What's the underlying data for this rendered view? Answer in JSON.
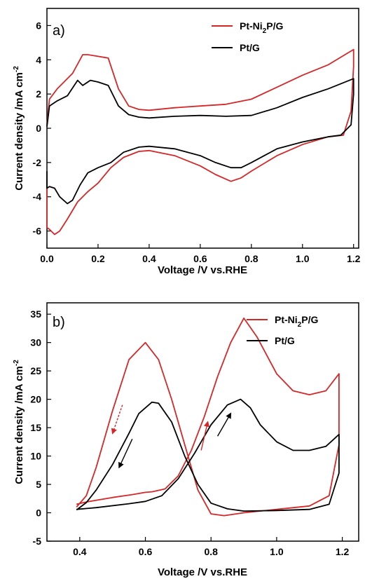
{
  "chart_data": [
    {
      "type": "line",
      "panel_label": "a)",
      "xlabel": "Voltage /V vs.RHE",
      "ylabel_main": "Current density /mA cm",
      "ylabel_sup": "-2",
      "xlim": [
        0.0,
        1.22
      ],
      "ylim": [
        -7,
        7
      ],
      "xticks": [
        0.0,
        0.2,
        0.4,
        0.6,
        0.8,
        1.0,
        1.2
      ],
      "xtick_labels": [
        "0.0",
        "0.2",
        "0.4",
        "0.6",
        "0.8",
        "1.0",
        "1.2"
      ],
      "yticks": [
        -6,
        -4,
        -2,
        0,
        2,
        4,
        6
      ],
      "ytick_labels": [
        "-6",
        "-4",
        "-2",
        "0",
        "2",
        "4",
        "6"
      ],
      "legend_position": "top-right",
      "series": [
        {
          "name": "Pt-Ni₂P/G",
          "name_base": "Pt-Ni",
          "name_sub": "2",
          "name_rest": "P/G",
          "color": "#d62728",
          "x": [
            0.0,
            0.01,
            0.04,
            0.1,
            0.14,
            0.16,
            0.2,
            0.24,
            0.28,
            0.32,
            0.36,
            0.4,
            0.5,
            0.6,
            0.7,
            0.8,
            0.9,
            1.0,
            1.1,
            1.2,
            1.2,
            1.19,
            1.16,
            1.1,
            1.0,
            0.9,
            0.8,
            0.76,
            0.72,
            0.66,
            0.6,
            0.5,
            0.4,
            0.36,
            0.3,
            0.25,
            0.2,
            0.16,
            0.12,
            0.08,
            0.05,
            0.03,
            0.01,
            0.0,
            0.0
          ],
          "y": [
            0.2,
            1.7,
            2.3,
            3.2,
            4.3,
            4.3,
            4.2,
            4.1,
            2.3,
            1.3,
            1.1,
            1.05,
            1.2,
            1.3,
            1.4,
            1.7,
            2.4,
            3.1,
            3.7,
            4.6,
            3.6,
            1.0,
            -0.4,
            -0.5,
            -0.95,
            -1.6,
            -2.5,
            -2.9,
            -3.1,
            -2.7,
            -2.2,
            -1.6,
            -1.3,
            -1.35,
            -1.7,
            -2.3,
            -3.2,
            -3.7,
            -4.3,
            -5.3,
            -6.0,
            -6.2,
            -5.9,
            -5.8,
            -3.0
          ]
        },
        {
          "name": "Pt/G",
          "color": "#000000",
          "x": [
            0.0,
            0.01,
            0.04,
            0.08,
            0.12,
            0.14,
            0.17,
            0.2,
            0.24,
            0.28,
            0.32,
            0.36,
            0.4,
            0.5,
            0.6,
            0.7,
            0.8,
            0.9,
            1.0,
            1.1,
            1.2,
            1.2,
            1.19,
            1.15,
            1.1,
            1.0,
            0.9,
            0.8,
            0.76,
            0.72,
            0.66,
            0.6,
            0.5,
            0.4,
            0.36,
            0.3,
            0.25,
            0.2,
            0.16,
            0.13,
            0.1,
            0.08,
            0.05,
            0.03,
            0.01,
            0.0,
            0.0
          ],
          "y": [
            0.1,
            1.3,
            1.6,
            1.9,
            2.8,
            2.5,
            2.8,
            2.7,
            2.5,
            1.3,
            0.8,
            0.65,
            0.6,
            0.7,
            0.75,
            0.7,
            0.75,
            1.2,
            1.8,
            2.3,
            2.9,
            2.0,
            0.2,
            -0.4,
            -0.5,
            -0.8,
            -1.2,
            -2.0,
            -2.3,
            -2.3,
            -2.0,
            -1.6,
            -1.2,
            -1.05,
            -1.1,
            -1.4,
            -2.0,
            -2.3,
            -2.6,
            -3.3,
            -4.2,
            -4.4,
            -4.0,
            -3.5,
            -3.4,
            -3.5,
            -2.5
          ]
        }
      ]
    },
    {
      "type": "line",
      "panel_label": "b)",
      "xlabel": "Voltage /V vs.RHE",
      "ylabel_main": "Current density /mA cm",
      "ylabel_sup": "-2",
      "xlim": [
        0.3,
        1.25
      ],
      "ylim": [
        -5,
        37
      ],
      "xticks": [
        0.4,
        0.6,
        0.8,
        1.0,
        1.2
      ],
      "xtick_labels": [
        "0.4",
        "0.6",
        "0.8",
        "1.0",
        "1.2"
      ],
      "yticks": [
        -5,
        0,
        5,
        10,
        15,
        20,
        25,
        30,
        35
      ],
      "ytick_labels": [
        "-5",
        "0",
        "5",
        "10",
        "15",
        "20",
        "25",
        "30",
        "35"
      ],
      "legend_position": "top-right",
      "series": [
        {
          "name": "Pt-Ni₂P/G",
          "name_base": "Pt-Ni",
          "name_sub": "2",
          "name_rest": "P/G",
          "color": "#d62728",
          "x": [
            0.39,
            0.42,
            0.5,
            0.56,
            0.6,
            0.62,
            0.66,
            0.7,
            0.74,
            0.78,
            0.82,
            0.86,
            0.9,
            0.94,
            1.0,
            1.05,
            1.1,
            1.15,
            1.19,
            1.19,
            1.16,
            1.1,
            1.0,
            0.9,
            0.84,
            0.8,
            0.76,
            0.72,
            0.68,
            0.64,
            0.6,
            0.55,
            0.5,
            0.45,
            0.42,
            0.39
          ],
          "y": [
            1.5,
            1.9,
            2.7,
            3.2,
            3.6,
            3.7,
            4.2,
            6.5,
            11.0,
            17.0,
            24.0,
            30.0,
            34.3,
            31.0,
            24.5,
            21.5,
            20.8,
            21.5,
            24.5,
            12.0,
            3.0,
            1.2,
            0.6,
            0.0,
            -0.5,
            -0.2,
            4.0,
            12.0,
            20.0,
            27.0,
            30.0,
            27.0,
            18.0,
            8.0,
            3.0,
            1.0
          ]
        },
        {
          "name": "Pt/G",
          "color": "#000000",
          "x": [
            0.39,
            0.45,
            0.55,
            0.6,
            0.65,
            0.7,
            0.75,
            0.8,
            0.85,
            0.89,
            0.92,
            0.95,
            1.0,
            1.05,
            1.1,
            1.15,
            1.19,
            1.19,
            1.16,
            1.1,
            1.0,
            0.9,
            0.85,
            0.8,
            0.76,
            0.72,
            0.68,
            0.64,
            0.62,
            0.58,
            0.55,
            0.5,
            0.45,
            0.42,
            0.39
          ],
          "y": [
            0.6,
            0.9,
            1.6,
            2.0,
            3.0,
            6.0,
            10.5,
            15.5,
            19.0,
            20.0,
            18.5,
            15.5,
            12.5,
            11.0,
            11.0,
            11.7,
            13.8,
            7.0,
            1.5,
            0.6,
            0.4,
            0.3,
            0.7,
            1.7,
            5.0,
            10.0,
            16.0,
            19.3,
            19.5,
            17.5,
            14.0,
            8.5,
            4.0,
            1.8,
            0.5
          ]
        }
      ],
      "annotations": [
        {
          "type": "arrow",
          "x": [
            0.53,
            0.5
          ],
          "y": [
            19.0,
            14.0
          ],
          "color": "#d62728",
          "style": "dashed"
        },
        {
          "type": "arrow",
          "x": [
            0.56,
            0.52
          ],
          "y": [
            13.0,
            8.0
          ],
          "color": "#000000",
          "style": "solid"
        },
        {
          "type": "arrow",
          "x": [
            0.77,
            0.79
          ],
          "y": [
            11.0,
            16.0
          ],
          "color": "#d62728",
          "style": "solid"
        },
        {
          "type": "arrow",
          "x": [
            0.82,
            0.86
          ],
          "y": [
            13.5,
            17.5
          ],
          "color": "#000000",
          "style": "solid"
        }
      ]
    }
  ]
}
